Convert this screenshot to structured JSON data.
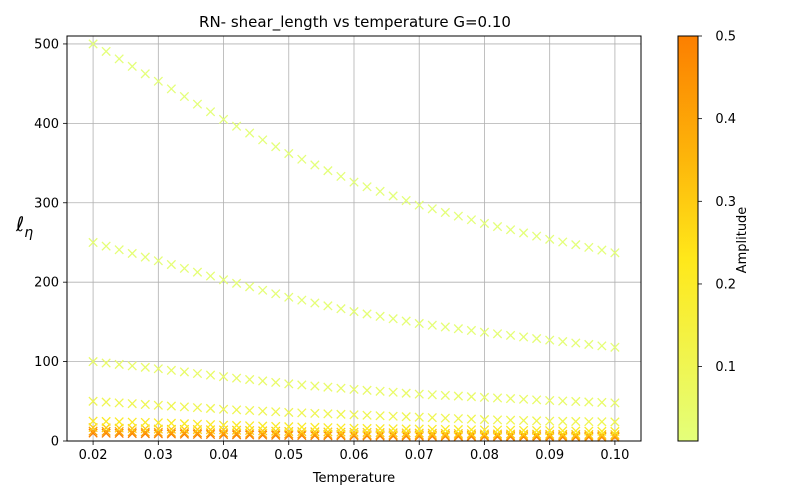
{
  "chart_data": {
    "type": "scatter",
    "title": "RN- shear_length vs temperature G=0.10",
    "xlabel": "Temperature",
    "ylabel": "ℓ_η",
    "xlim": [
      0.016,
      0.104
    ],
    "ylim": [
      0,
      510
    ],
    "x_ticks": [
      "0.02",
      "0.03",
      "0.04",
      "0.05",
      "0.06",
      "0.07",
      "0.08",
      "0.09",
      "0.10"
    ],
    "y_ticks": [
      "0",
      "100",
      "200",
      "300",
      "400",
      "500"
    ],
    "grid": true,
    "marker": "x",
    "x": [
      0.02,
      0.03,
      0.04,
      0.05,
      0.06,
      0.07,
      0.08,
      0.09,
      0.1
    ],
    "series": [
      {
        "amplitude": 0.01,
        "values": [
          500,
          453,
          405,
          362,
          326,
          297,
          274,
          254,
          237
        ]
      },
      {
        "amplitude": 0.02,
        "values": [
          250,
          227,
          203,
          181,
          163,
          148,
          137,
          127,
          118
        ]
      },
      {
        "amplitude": 0.05,
        "values": [
          100,
          91,
          81,
          72,
          65,
          59,
          55,
          51,
          48
        ]
      },
      {
        "amplitude": 0.1,
        "values": [
          50,
          45,
          40,
          36,
          33,
          30,
          27,
          25,
          24
        ]
      },
      {
        "amplitude": 0.2,
        "values": [
          25,
          23,
          20,
          18,
          16,
          15,
          14,
          13,
          12
        ]
      },
      {
        "amplitude": 0.3,
        "values": [
          17,
          15,
          14,
          12,
          11,
          10,
          9,
          8.5,
          8
        ]
      },
      {
        "amplitude": 0.4,
        "values": [
          12.5,
          11,
          10,
          9,
          8,
          7.5,
          7,
          6.5,
          6
        ]
      },
      {
        "amplitude": 0.5,
        "values": [
          10,
          9,
          8,
          7,
          6.5,
          6,
          5.5,
          5,
          4.8
        ]
      }
    ],
    "colorbar": {
      "label": "Amplitude",
      "range": [
        0.01,
        0.5
      ],
      "ticks": [
        "0.1",
        "0.2",
        "0.3",
        "0.4",
        "0.5"
      ],
      "colormap": "Wistia",
      "color_low": "#e4ff7a",
      "color_mid": "#ffe81a",
      "color_high": "#fc7f00"
    }
  }
}
